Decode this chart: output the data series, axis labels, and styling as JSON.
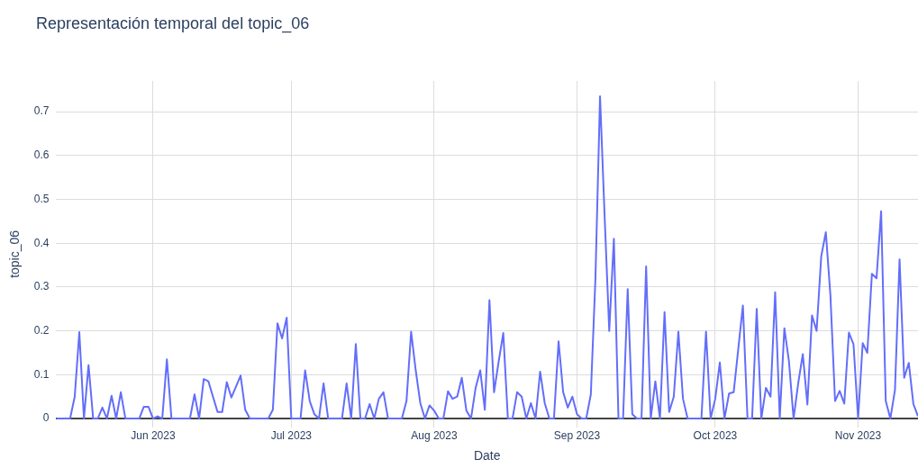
{
  "chart_data": {
    "type": "line",
    "title": "Representación temporal del topic_06",
    "xlabel": "Date",
    "ylabel": "topic_06",
    "x": [
      "2023-05-11",
      "2023-05-14",
      "2023-05-15",
      "2023-05-16",
      "2023-05-17",
      "2023-05-18",
      "2023-05-19",
      "2023-05-20",
      "2023-05-21",
      "2023-05-22",
      "2023-05-23",
      "2023-05-24",
      "2023-05-25",
      "2023-05-26",
      "2023-05-29",
      "2023-05-30",
      "2023-05-31",
      "2023-06-01",
      "2023-06-02",
      "2023-06-03",
      "2023-06-04",
      "2023-06-05",
      "2023-06-09",
      "2023-06-10",
      "2023-06-11",
      "2023-06-12",
      "2023-06-13",
      "2023-06-15",
      "2023-06-16",
      "2023-06-17",
      "2023-06-18",
      "2023-06-20",
      "2023-06-21",
      "2023-06-22",
      "2023-06-26",
      "2023-06-27",
      "2023-06-28",
      "2023-06-29",
      "2023-06-30",
      "2023-07-01",
      "2023-07-03",
      "2023-07-04",
      "2023-07-05",
      "2023-07-06",
      "2023-07-07",
      "2023-07-08",
      "2023-07-09",
      "2023-07-12",
      "2023-07-13",
      "2023-07-14",
      "2023-07-15",
      "2023-07-16",
      "2023-07-17",
      "2023-07-18",
      "2023-07-19",
      "2023-07-20",
      "2023-07-21",
      "2023-07-22",
      "2023-07-25",
      "2023-07-26",
      "2023-07-27",
      "2023-07-28",
      "2023-07-29",
      "2023-07-30",
      "2023-07-31",
      "2023-08-01",
      "2023-08-02",
      "2023-08-03",
      "2023-08-04",
      "2023-08-05",
      "2023-08-06",
      "2023-08-07",
      "2023-08-08",
      "2023-08-09",
      "2023-08-10",
      "2023-08-11",
      "2023-08-12",
      "2023-08-13",
      "2023-08-14",
      "2023-08-15",
      "2023-08-16",
      "2023-08-17",
      "2023-08-18",
      "2023-08-19",
      "2023-08-20",
      "2023-08-21",
      "2023-08-22",
      "2023-08-23",
      "2023-08-24",
      "2023-08-25",
      "2023-08-26",
      "2023-08-27",
      "2023-08-28",
      "2023-08-29",
      "2023-08-30",
      "2023-08-31",
      "2023-09-01",
      "2023-09-02",
      "2023-09-03",
      "2023-09-04",
      "2023-09-05",
      "2023-09-06",
      "2023-09-07",
      "2023-09-08",
      "2023-09-09",
      "2023-09-10",
      "2023-09-11",
      "2023-09-12",
      "2023-09-13",
      "2023-09-14",
      "2023-09-15",
      "2023-09-16",
      "2023-09-17",
      "2023-09-18",
      "2023-09-19",
      "2023-09-20",
      "2023-09-21",
      "2023-09-22",
      "2023-09-23",
      "2023-09-24",
      "2023-09-25",
      "2023-09-28",
      "2023-09-29",
      "2023-09-30",
      "2023-10-01",
      "2023-10-02",
      "2023-10-03",
      "2023-10-04",
      "2023-10-05",
      "2023-10-07",
      "2023-10-08",
      "2023-10-09",
      "2023-10-10",
      "2023-10-11",
      "2023-10-12",
      "2023-10-13",
      "2023-10-14",
      "2023-10-15",
      "2023-10-16",
      "2023-10-17",
      "2023-10-18",
      "2023-10-19",
      "2023-10-20",
      "2023-10-21",
      "2023-10-22",
      "2023-10-23",
      "2023-10-24",
      "2023-10-25",
      "2023-10-26",
      "2023-10-27",
      "2023-10-28",
      "2023-10-29",
      "2023-10-30",
      "2023-10-31",
      "2023-11-01",
      "2023-11-02",
      "2023-11-03",
      "2023-11-04",
      "2023-11-05",
      "2023-11-06",
      "2023-11-07",
      "2023-11-08",
      "2023-11-09",
      "2023-11-10",
      "2023-11-11",
      "2023-11-12",
      "2023-11-13",
      "2023-11-14"
    ],
    "values": [
      0,
      0,
      0.05,
      0.197,
      0,
      0.122,
      0,
      0,
      0.025,
      0,
      0.052,
      0,
      0.06,
      0,
      0,
      0.027,
      0.027,
      0,
      0.005,
      0,
      0.135,
      0,
      0,
      0.055,
      0,
      0.09,
      0.085,
      0.015,
      0.015,
      0.083,
      0.048,
      0.098,
      0.02,
      0,
      0,
      0.02,
      0.217,
      0.183,
      0.23,
      0,
      0,
      0.11,
      0.04,
      0.01,
      0,
      0.08,
      0,
      0,
      0.08,
      0,
      0.17,
      0,
      0,
      0.033,
      0,
      0.045,
      0.06,
      0,
      0,
      0.04,
      0.198,
      0.11,
      0.035,
      0,
      0.03,
      0.018,
      0,
      0,
      0.062,
      0.045,
      0.05,
      0.093,
      0.018,
      0,
      0.07,
      0.11,
      0.02,
      0.27,
      0.06,
      0.13,
      0.195,
      0,
      0,
      0.06,
      0.05,
      0,
      0.035,
      0,
      0.107,
      0.035,
      0,
      0,
      0.176,
      0.06,
      0.025,
      0.05,
      0.01,
      0,
      0,
      0.055,
      0.32,
      0.735,
      0.46,
      0.2,
      0.41,
      0,
      0,
      0.295,
      0.01,
      0,
      0,
      0.347,
      0,
      0.085,
      0,
      0.243,
      0.015,
      0.05,
      0.198,
      0.045,
      0,
      0,
      0.198,
      0,
      0.045,
      0.128,
      0,
      0.057,
      0.06,
      0.258,
      0,
      0,
      0.25,
      0,
      0.07,
      0.05,
      0.288,
      0,
      0.206,
      0.13,
      0,
      0.08,
      0.147,
      0.032,
      0.235,
      0.2,
      0.37,
      0.425,
      0.28,
      0.04,
      0.063,
      0.034,
      0.196,
      0.17,
      0,
      0.172,
      0.15,
      0.33,
      0.32,
      0.473,
      0.04,
      0,
      0.065,
      0.363,
      0.093,
      0.127,
      0.033,
      0.005
    ],
    "color": "#636efa",
    "xlim": [
      "2023-05-11",
      "2023-11-14"
    ],
    "xticks": [
      {
        "value": "2023-06-01",
        "label": "Jun 2023"
      },
      {
        "value": "2023-07-01",
        "label": "Jul 2023"
      },
      {
        "value": "2023-08-01",
        "label": "Aug 2023"
      },
      {
        "value": "2023-09-01",
        "label": "Sep 2023"
      },
      {
        "value": "2023-10-01",
        "label": "Oct 2023"
      },
      {
        "value": "2023-11-01",
        "label": "Nov 2023"
      }
    ],
    "ylim": [
      -0.02,
      0.77
    ],
    "yticks": [
      0,
      0.1,
      0.2,
      0.3,
      0.4,
      0.5,
      0.6,
      0.7
    ],
    "grid": true,
    "legend": false,
    "marker": "none",
    "line_style": "solid"
  }
}
